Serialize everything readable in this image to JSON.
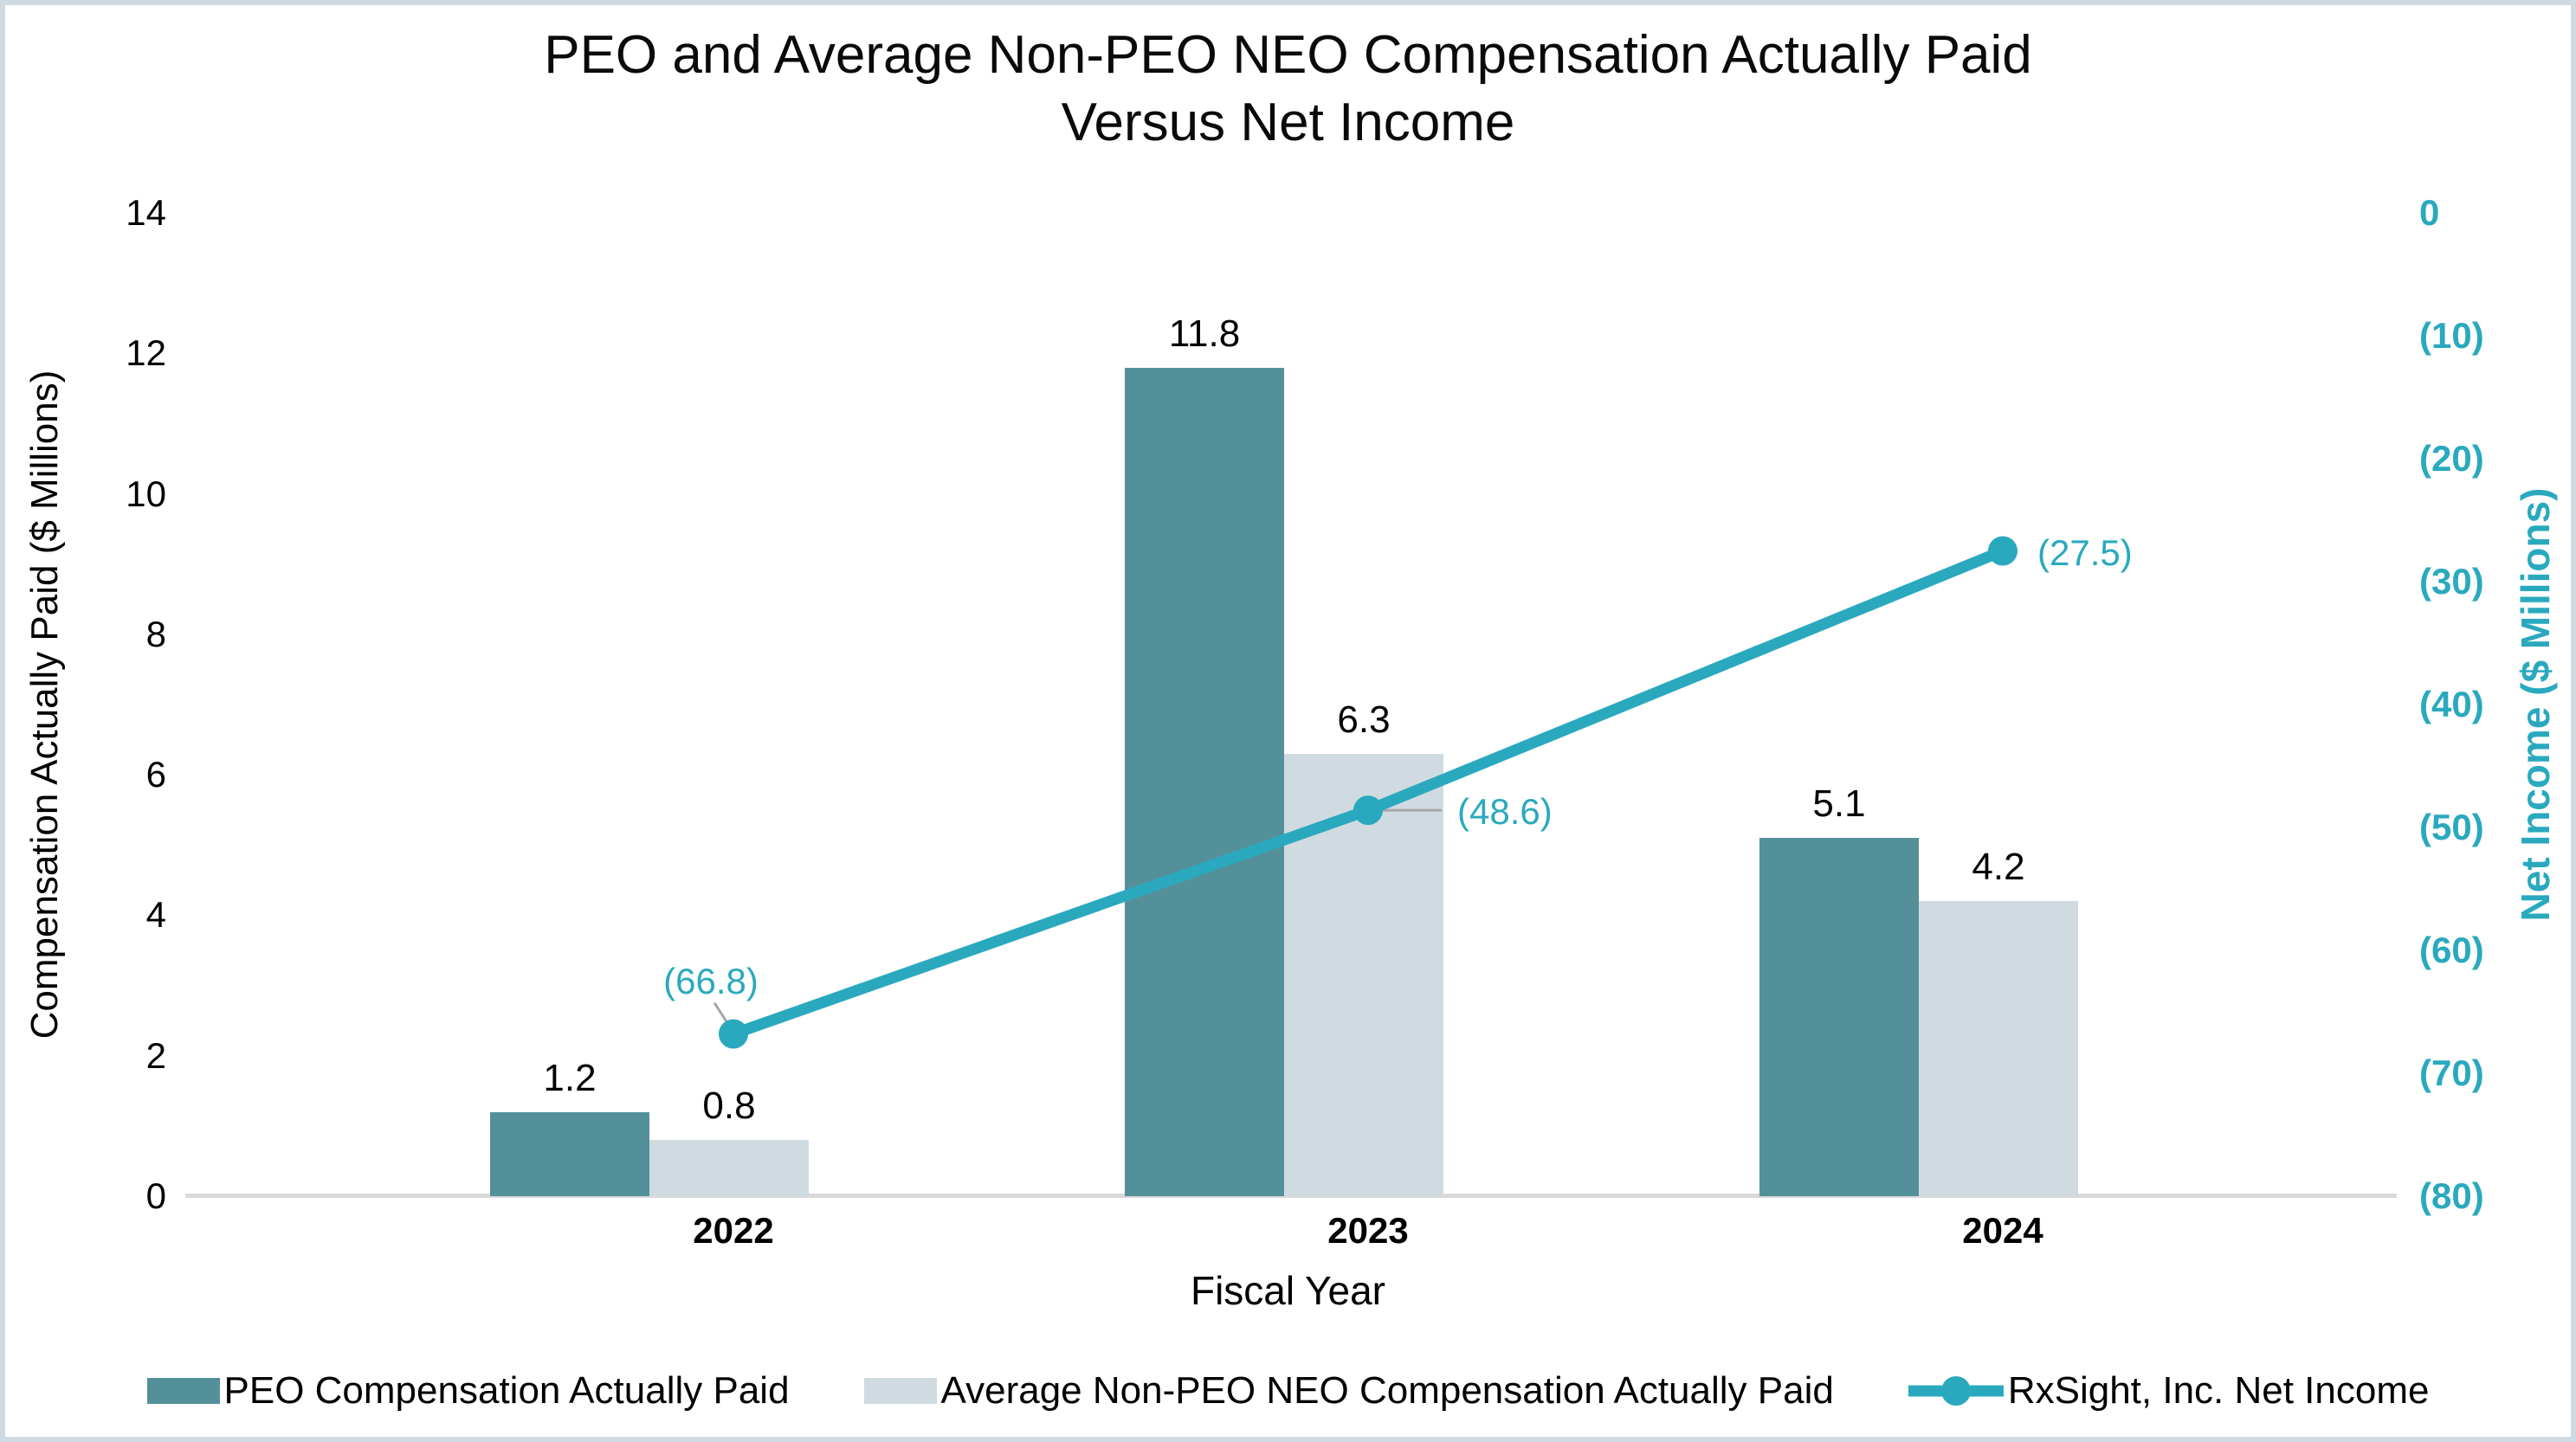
{
  "title": {
    "line1": "PEO and Average Non-PEO NEO Compensation Actually Paid",
    "line2": "Versus Net Income"
  },
  "colors": {
    "peo_bar": "#54909A",
    "non_peo_bar": "#CFDBE0",
    "net_income_line": "#2AA9BE",
    "axis_baseline": "#D9D9D9",
    "leader_line": "#A6A6A6",
    "border": "#CEDAE0"
  },
  "chart_data": {
    "type": "combo (bar + line)",
    "categories": [
      "2022",
      "2023",
      "2024"
    ],
    "series": [
      {
        "name": "PEO Compensation Actually Paid",
        "type": "bar",
        "axis": "left",
        "color": "#54909A",
        "values": [
          1.2,
          11.8,
          5.1
        ],
        "data_labels": [
          "1.2",
          "11.8",
          "5.1"
        ]
      },
      {
        "name": "Average Non-PEO NEO Compensation Actually Paid",
        "type": "bar",
        "axis": "left",
        "color": "#CFDBE0",
        "values": [
          0.8,
          6.3,
          4.2
        ],
        "data_labels": [
          "0.8",
          "6.3",
          "4.2"
        ]
      },
      {
        "name": "RxSight, Inc. Net Income",
        "type": "line",
        "axis": "right",
        "color": "#2AA9BE",
        "values": [
          -66.8,
          -48.6,
          -27.5
        ],
        "data_labels": [
          "(66.8)",
          "(48.6)",
          "(27.5)"
        ]
      }
    ],
    "x_axis": {
      "title": "Fiscal Year"
    },
    "left_axis": {
      "title": "Compensation Actually Paid ($ Millions)",
      "range": [
        0,
        14
      ],
      "tick_values": [
        0,
        2,
        4,
        6,
        8,
        10,
        12,
        14
      ],
      "tick_labels": [
        "0",
        "2",
        "4",
        "6",
        "8",
        "10",
        "12",
        "14"
      ]
    },
    "right_axis": {
      "title": "Net Income ($ Millions)",
      "range": [
        -80,
        0
      ],
      "tick_values": [
        0,
        -10,
        -20,
        -30,
        -40,
        -50,
        -60,
        -70,
        -80
      ],
      "tick_labels": [
        "0",
        "(10)",
        "(20)",
        "(30)",
        "(40)",
        "(50)",
        "(60)",
        "(70)",
        "(80)"
      ]
    },
    "legend_position": "bottom",
    "grid": false
  }
}
